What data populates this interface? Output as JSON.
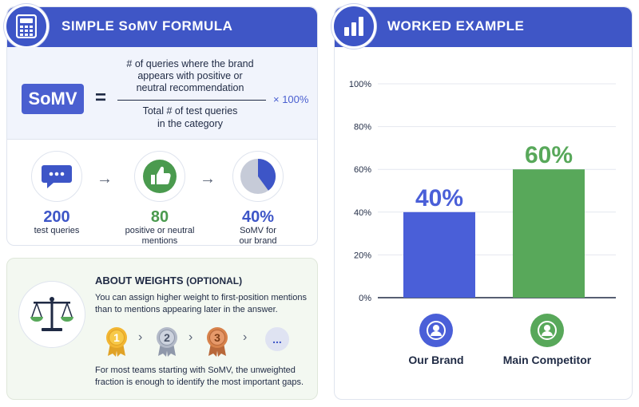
{
  "formula_card": {
    "title": "SIMPLE SoMV FORMULA",
    "somv_label": "SoMV",
    "equals": "=",
    "numerator_lines": [
      "# of queries where the brand",
      "appears with positive or",
      "neutral recommendation"
    ],
    "denominator_lines": [
      "Total # of test queries",
      "in the category"
    ],
    "multiplier": "× 100%",
    "steps": [
      {
        "value": "200",
        "desc": [
          "test queries"
        ],
        "icon": "chat-bubble-icon",
        "color": "#3d55c7"
      },
      {
        "value": "80",
        "desc": [
          "positive or neutral",
          "mentions"
        ],
        "icon": "thumbs-up-icon",
        "color": "#4a9a4e"
      },
      {
        "value": "40%",
        "desc": [
          "SoMV for",
          "our brand"
        ],
        "icon": "pie-chart-icon",
        "color": "#3d55c7"
      }
    ],
    "arrow": "→"
  },
  "weights_card": {
    "title": "ABOUT WEIGHTS",
    "title_suffix": "(OPTIONAL)",
    "text1": "You can assign higher weight to first-position mentions than to mentions appearing later in the answer.",
    "medals": [
      "1",
      "2",
      "3"
    ],
    "more": "...",
    "text2": "For most teams starting with SoMV, the unweighted fraction is enough to identify the most important gaps."
  },
  "chart_card": {
    "title": "WORKED EXAMPLE"
  },
  "chart_data": {
    "type": "bar",
    "categories": [
      "Our Brand",
      "Main Competitor"
    ],
    "values": [
      40,
      60
    ],
    "data_labels": [
      "40%",
      "60%"
    ],
    "colors": [
      "#4a5fd8",
      "#58a85a"
    ],
    "ylim": [
      0,
      100
    ],
    "yticks": [
      "0%",
      "20%",
      "40%",
      "60%",
      "80%",
      "100%"
    ],
    "grid": true,
    "xlabel": "",
    "ylabel": "",
    "legend_position": "bottom"
  },
  "colors": {
    "header": "#3f56c6",
    "accent_blue": "#4a5fd0",
    "accent_green": "#4a9a4e"
  }
}
